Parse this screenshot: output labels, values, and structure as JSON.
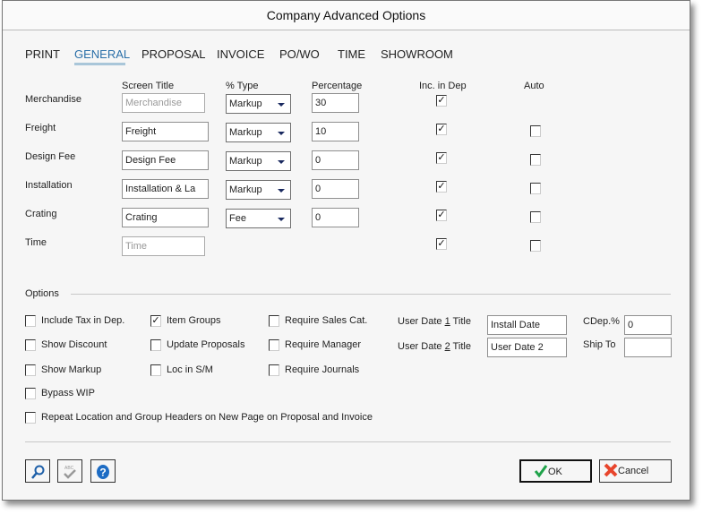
{
  "window": {
    "title": "Company Advanced Options"
  },
  "tabs": [
    {
      "label": "PRINT"
    },
    {
      "label": "GENERAL",
      "active": true
    },
    {
      "label": "PROPOSAL"
    },
    {
      "label": "INVOICE"
    },
    {
      "label": "PO/WO"
    },
    {
      "label": "TIME"
    },
    {
      "label": "SHOWROOM"
    }
  ],
  "headers": {
    "screen_title": "Screen Title",
    "type": "% Type",
    "percentage": "Percentage",
    "inc_dep": "Inc. in Dep",
    "auto": "Auto"
  },
  "rows": [
    {
      "label": "Merchandise",
      "title": "Merchandise",
      "title_disabled": true,
      "type": "Markup",
      "pct": "30",
      "inc": true,
      "auto": null
    },
    {
      "label": "Freight",
      "title": "Freight",
      "type": "Markup",
      "pct": "10",
      "inc": true,
      "auto": false
    },
    {
      "label": "Design Fee",
      "title": "Design Fee",
      "type": "Markup",
      "pct": "0",
      "inc": true,
      "auto": false
    },
    {
      "label": "Installation",
      "title": "Installation & La",
      "type": "Markup",
      "pct": "0",
      "inc": true,
      "auto": false
    },
    {
      "label": "Crating",
      "title": "Crating",
      "type": "Fee",
      "pct": "0",
      "inc": true,
      "auto": false
    },
    {
      "label": "Time",
      "title": "Time",
      "title_disabled": true,
      "inc": true,
      "auto": false
    }
  ],
  "options": {
    "label": "Options",
    "checks": [
      {
        "label": "Include Tax in Dep.",
        "checked": false
      },
      {
        "label": "Show Discount",
        "checked": false
      },
      {
        "label": "Show Markup",
        "checked": false
      },
      {
        "label": "Bypass WIP",
        "checked": false
      },
      {
        "label": "Item Groups",
        "checked": true
      },
      {
        "label": "Update Proposals",
        "checked": false
      },
      {
        "label": "Loc in S/M",
        "checked": false
      },
      {
        "label": "Require Sales Cat.",
        "checked": false
      },
      {
        "label": "Require Manager",
        "checked": false
      },
      {
        "label": "Require Journals",
        "checked": false
      },
      {
        "label": "Repeat Location and Group Headers on New Page on Proposal and Invoice",
        "checked": false
      }
    ],
    "user_date1": {
      "pre": "User Date ",
      "num": "1",
      "post": " Title",
      "value": "Install Date"
    },
    "user_date2": {
      "pre": "User Date ",
      "num": "2",
      "post": " Title",
      "value": "User Date 2"
    },
    "cdep": {
      "label": "CDep.%",
      "value": "0"
    },
    "ship_to": {
      "label": "Ship To",
      "value": ""
    }
  },
  "buttons": {
    "ok": "OK",
    "cancel": "Cancel",
    "find_icon": "magnifier-icon",
    "spell_icon": "spellcheck-icon",
    "help_icon": "help-icon"
  },
  "colors": {
    "accent": "#2a6fa8",
    "ok": "#1fa34a",
    "cancel": "#e8452c"
  }
}
